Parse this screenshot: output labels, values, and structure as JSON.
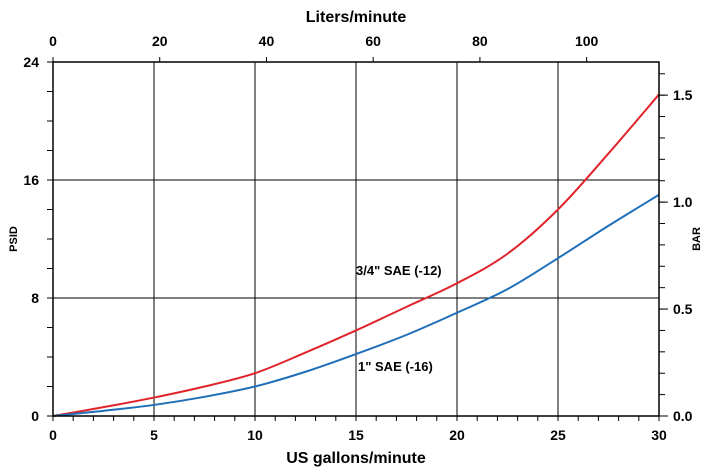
{
  "chart_data": {
    "type": "line",
    "xlabel": "US gallons/minute",
    "x2label": "Liters/minute",
    "ylabel": "PSID",
    "y2label": "BAR",
    "xlim": [
      0,
      30
    ],
    "x2lim": [
      0,
      113.56
    ],
    "ylim": [
      0,
      24
    ],
    "y2lim": [
      0,
      1.655
    ],
    "x_ticks": [
      "0",
      "5",
      "10",
      "15",
      "20",
      "25",
      "30"
    ],
    "x2_ticks": [
      "0",
      "20",
      "40",
      "60",
      "80",
      "100"
    ],
    "y_ticks": [
      "0",
      "8",
      "16",
      "24"
    ],
    "y2_ticks": [
      "0.0",
      "0.5",
      "1.0",
      "1.5"
    ],
    "grid": true,
    "series": [
      {
        "name": "3/4\" SAE (-12)",
        "color": "#e0242b",
        "x": [
          0,
          2.5,
          5,
          7.5,
          10,
          12.5,
          15,
          17.5,
          20,
          22.5,
          25,
          27.5,
          30
        ],
        "y": [
          0,
          0.6,
          1.25,
          2.0,
          2.9,
          4.3,
          5.8,
          7.4,
          9.0,
          11.0,
          14.0,
          17.8,
          21.8
        ]
      },
      {
        "name": "1\" SAE (-16)",
        "color": "#1f6fb8",
        "x": [
          0,
          2.5,
          5,
          7.5,
          10,
          12.5,
          15,
          17.5,
          20,
          22.5,
          25,
          27.5,
          30
        ],
        "y": [
          0,
          0.35,
          0.75,
          1.3,
          2.0,
          3.0,
          4.2,
          5.5,
          7.0,
          8.6,
          10.7,
          12.9,
          15.0
        ]
      }
    ],
    "annotations": [
      "3/4\" SAE (-12)",
      "1\" SAE (-16)"
    ]
  }
}
